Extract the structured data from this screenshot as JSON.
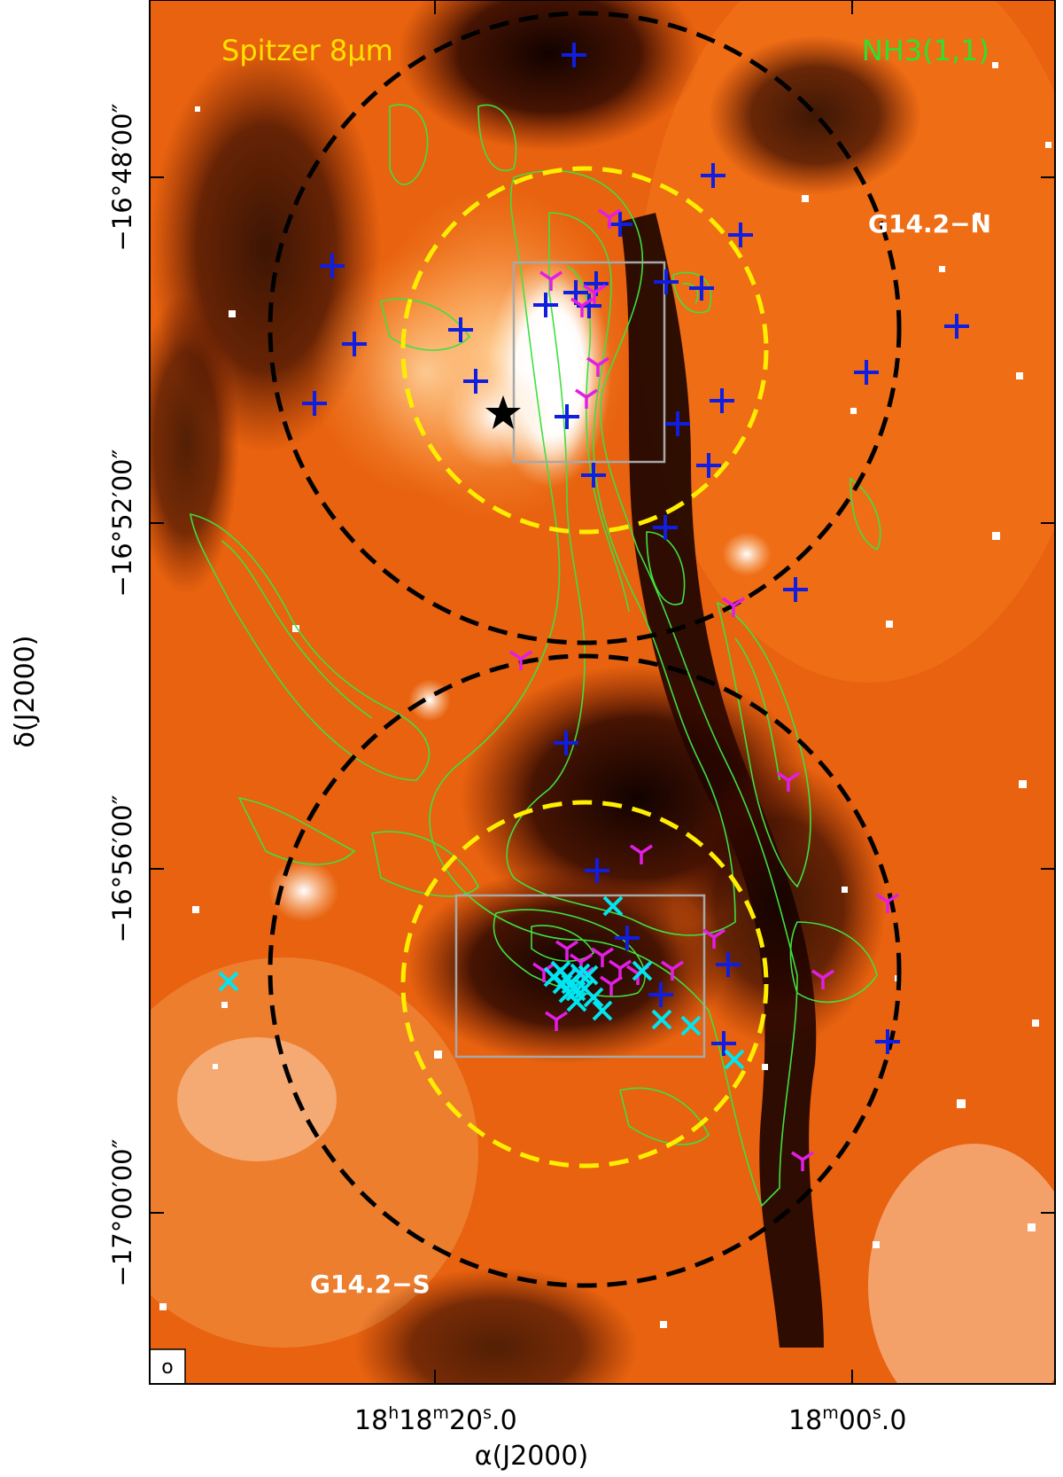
{
  "image": {
    "label_band": "Spitzer 8μm",
    "label_line": "NH3(1,1)",
    "region_north": "G14.2−N",
    "region_south": "G14.2−S",
    "beam_symbol": "o",
    "colors": {
      "band_label": "#ffe100",
      "line_label": "#2fe02f",
      "contour": "#3fe03f",
      "outer_circle": "#000000",
      "inner_circle": "#ffee00",
      "box": "#a8a8a8",
      "plus_marker": "#0f1ee0",
      "tri_marker": "#e21ee6",
      "x_marker": "#00e5f0",
      "star": "#000000"
    }
  },
  "axes": {
    "x_label": "α(J2000)",
    "y_label": "δ(J2000)",
    "x_ticks": [
      {
        "h": "18",
        "m": "18",
        "s": "20",
        "frac": ".0"
      },
      {
        "h": "",
        "m": "18",
        "s": "00",
        "frac": ".0"
      }
    ],
    "y_ticks": [
      "−16°48′00″",
      "−16°52′00″",
      "−16°56′00″",
      "−17°00′00″"
    ]
  },
  "markers": {
    "plus_count": 31,
    "tri_count": 24,
    "x_count": 19,
    "star_count": 1
  }
}
